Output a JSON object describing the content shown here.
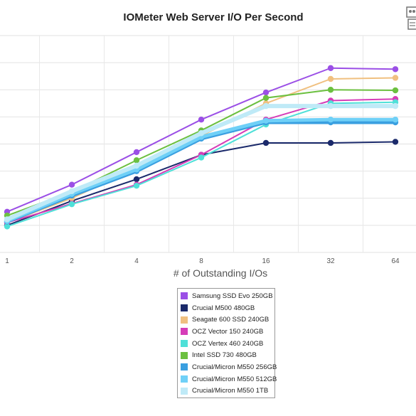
{
  "chart_data": {
    "type": "line",
    "title": "IOMeter Web Server I/O Per Second",
    "xlabel": "# of Outstanding I/Os",
    "ylabel": "",
    "x": [
      1,
      2,
      4,
      8,
      16,
      32,
      64
    ],
    "grid": true,
    "legend_position": "bottom",
    "series": [
      {
        "name": "Samsung SSD Evo 250GB",
        "color": "#9b4fe6",
        "values": [
          7.5,
          12.5,
          18.5,
          24.5,
          29.5,
          34.0,
          33.8
        ]
      },
      {
        "name": "Crucial M500 480GB",
        "color": "#1b2a6b",
        "values": [
          5.0,
          9.5,
          13.5,
          18.0,
          20.2,
          20.2,
          20.4
        ]
      },
      {
        "name": "Seagate 600 SSD 240GB",
        "color": "#f0c080",
        "values": [
          5.5,
          10.0,
          15.5,
          21.5,
          27.5,
          32.0,
          32.2
        ]
      },
      {
        "name": "OCZ Vector 150 240GB",
        "color": "#d63db8",
        "values": [
          5.5,
          9.0,
          12.5,
          18.0,
          24.5,
          28.0,
          28.3
        ]
      },
      {
        "name": "OCZ Vertex 460 240GB",
        "color": "#4fe0d8",
        "values": [
          4.8,
          8.9,
          12.3,
          17.5,
          23.6,
          27.5,
          27.7
        ]
      },
      {
        "name": "Intel SSD 730 480GB",
        "color": "#6cc040",
        "values": [
          6.8,
          11.2,
          17.0,
          22.5,
          28.5,
          30.0,
          29.9
        ]
      },
      {
        "name": "Crucial/Micron M550 256GB",
        "color": "#3a9fe0",
        "values": [
          5.7,
          10.5,
          15.0,
          21.0,
          24.0,
          24.0,
          24.0
        ]
      },
      {
        "name": "Crucial/Micron M550 512GB",
        "color": "#6fd0f7",
        "values": [
          5.8,
          10.8,
          15.3,
          21.3,
          24.3,
          24.5,
          24.5
        ]
      },
      {
        "name": "Crucial/Micron M550 1TB",
        "color": "#bfeaf7",
        "values": [
          6.1,
          11.3,
          16.0,
          22.0,
          27.0,
          27.0,
          27.0
        ]
      }
    ]
  }
}
